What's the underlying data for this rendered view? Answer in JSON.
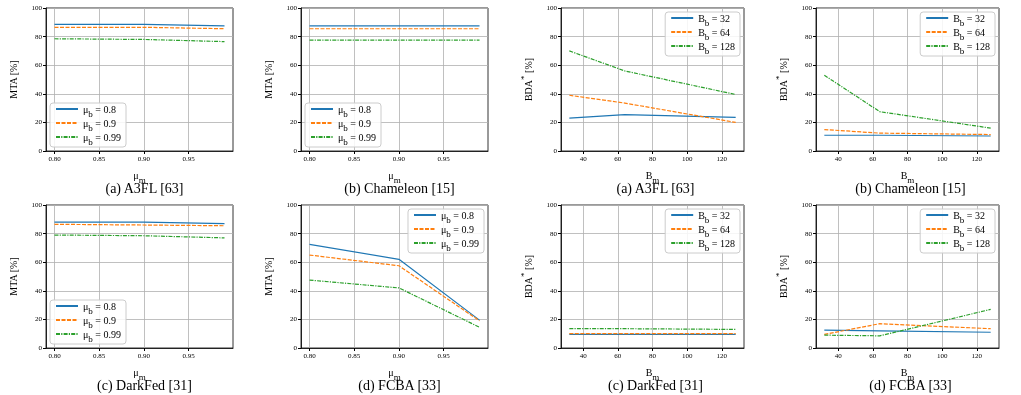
{
  "chart_data": [
    {
      "type": "line",
      "title": "(a) A3FL [63]",
      "xlabel": "μ$_{m}$",
      "ylabel": "MTA [%]",
      "x": [
        0.8,
        0.9,
        0.99
      ],
      "xlim": [
        0.7905,
        0.9995
      ],
      "xticks": [
        {
          "value": 0.8,
          "label": "0.80"
        },
        {
          "value": 0.85,
          "label": "0.85"
        },
        {
          "value": 0.9,
          "label": "0.90"
        },
        {
          "value": 0.95,
          "label": "0.95"
        }
      ],
      "ylim": [
        0,
        100
      ],
      "yticks": [
        0,
        20,
        40,
        60,
        80,
        100
      ],
      "grid": true,
      "legend": "bottom left",
      "series": [
        {
          "name": "μ$_{b}$ = 0.8",
          "color": "#1f77b4",
          "line_style": "solid",
          "values": [
            88.5,
            88.5,
            87.5
          ]
        },
        {
          "name": "μ$_{b}$ = 0.9",
          "color": "#ff7f0e",
          "line_style": "dashed",
          "values": [
            86.5,
            86.5,
            85.5
          ]
        },
        {
          "name": "μ$_{b}$ = 0.99",
          "color": "#2ca02c",
          "line_style": "dashdot",
          "values": [
            78.5,
            78,
            76.5
          ]
        }
      ]
    },
    {
      "type": "line",
      "title": "(b) Chameleon [15]",
      "xlabel": "μ$_{m}$",
      "ylabel": "MTA [%]",
      "x": [
        0.8,
        0.9,
        0.99
      ],
      "xlim": [
        0.7905,
        0.9995
      ],
      "xticks": [
        {
          "value": 0.8,
          "label": "0.80"
        },
        {
          "value": 0.85,
          "label": "0.85"
        },
        {
          "value": 0.9,
          "label": "0.90"
        },
        {
          "value": 0.95,
          "label": "0.95"
        }
      ],
      "ylim": [
        0,
        100
      ],
      "yticks": [
        0,
        20,
        40,
        60,
        80,
        100
      ],
      "grid": true,
      "legend": "bottom left",
      "series": [
        {
          "name": "μ$_{b}$ = 0.8",
          "color": "#1f77b4",
          "line_style": "solid",
          "values": [
            87.5,
            87.5,
            87.5
          ]
        },
        {
          "name": "μ$_{b}$ = 0.9",
          "color": "#ff7f0e",
          "line_style": "dashed",
          "values": [
            85.5,
            85.5,
            85.5
          ]
        },
        {
          "name": "μ$_{b}$ = 0.99",
          "color": "#2ca02c",
          "line_style": "dashdot",
          "values": [
            77.5,
            77.5,
            77.5
          ]
        }
      ]
    },
    {
      "type": "line",
      "title": "(a) A3FL [63]",
      "xlabel": "B$_{m}$",
      "ylabel": "BDA$^{*}$ [%]",
      "x": [
        32,
        64,
        128
      ],
      "xlim": [
        27.2,
        132.8
      ],
      "xticks": [
        40,
        60,
        80,
        100,
        120
      ],
      "ylim": [
        0,
        100
      ],
      "yticks": [
        0,
        20,
        40,
        60,
        80,
        100
      ],
      "grid": true,
      "legend": "top right",
      "series": [
        {
          "name": "B$_{b}$ = 32",
          "color": "#1f77b4",
          "line_style": "solid",
          "values": [
            23,
            25.5,
            23.5
          ]
        },
        {
          "name": "B$_{b}$ = 64",
          "color": "#ff7f0e",
          "line_style": "dashed",
          "values": [
            39,
            33.5,
            20
          ]
        },
        {
          "name": "B$_{b}$ = 128",
          "color": "#2ca02c",
          "line_style": "dashdot",
          "values": [
            70,
            56,
            39.5
          ]
        }
      ]
    },
    {
      "type": "line",
      "title": "(b) Chameleon [15]",
      "xlabel": "B$_{m}$",
      "ylabel": "BDA$^{*}$ [%]",
      "x": [
        32,
        64,
        128
      ],
      "xlim": [
        27.2,
        132.8
      ],
      "xticks": [
        40,
        60,
        80,
        100,
        120
      ],
      "ylim": [
        0,
        100
      ],
      "yticks": [
        0,
        20,
        40,
        60,
        80,
        100
      ],
      "grid": true,
      "legend": "top right",
      "series": [
        {
          "name": "B$_{b}$ = 32",
          "color": "#1f77b4",
          "line_style": "solid",
          "values": [
            11,
            11,
            10.5
          ]
        },
        {
          "name": "B$_{b}$ = 64",
          "color": "#ff7f0e",
          "line_style": "dashed",
          "values": [
            15,
            12.5,
            11.5
          ]
        },
        {
          "name": "B$_{b}$ = 128",
          "color": "#2ca02c",
          "line_style": "dashdot",
          "values": [
            53,
            27.5,
            16
          ]
        }
      ]
    },
    {
      "type": "line",
      "title": "(c) DarkFed [31]",
      "xlabel": "μ$_{m}$",
      "ylabel": "MTA [%]",
      "x": [
        0.8,
        0.9,
        0.99
      ],
      "xlim": [
        0.7905,
        0.9995
      ],
      "xticks": [
        {
          "value": 0.8,
          "label": "0.80"
        },
        {
          "value": 0.85,
          "label": "0.85"
        },
        {
          "value": 0.9,
          "label": "0.90"
        },
        {
          "value": 0.95,
          "label": "0.95"
        }
      ],
      "ylim": [
        0,
        100
      ],
      "yticks": [
        0,
        20,
        40,
        60,
        80,
        100
      ],
      "grid": true,
      "legend": "bottom left",
      "series": [
        {
          "name": "μ$_{b}$ = 0.8",
          "color": "#1f77b4",
          "line_style": "solid",
          "values": [
            88,
            88,
            87
          ]
        },
        {
          "name": "μ$_{b}$ = 0.9",
          "color": "#ff7f0e",
          "line_style": "dashed",
          "values": [
            86.5,
            86,
            85.5
          ]
        },
        {
          "name": "μ$_{b}$ = 0.99",
          "color": "#2ca02c",
          "line_style": "dashdot",
          "values": [
            79,
            78.5,
            77
          ]
        }
      ]
    },
    {
      "type": "line",
      "title": "(d) FCBA [33]",
      "xlabel": "μ$_{m}$",
      "ylabel": "MTA [%]",
      "x": [
        0.8,
        0.9,
        0.99
      ],
      "xlim": [
        0.7905,
        0.9995
      ],
      "xticks": [
        {
          "value": 0.8,
          "label": "0.80"
        },
        {
          "value": 0.85,
          "label": "0.85"
        },
        {
          "value": 0.9,
          "label": "0.90"
        },
        {
          "value": 0.95,
          "label": "0.95"
        }
      ],
      "ylim": [
        0,
        100
      ],
      "yticks": [
        0,
        20,
        40,
        60,
        80,
        100
      ],
      "grid": true,
      "legend": "top right",
      "series": [
        {
          "name": "μ$_{b}$ = 0.8",
          "color": "#1f77b4",
          "line_style": "solid",
          "values": [
            72.5,
            62,
            19.5
          ]
        },
        {
          "name": "μ$_{b}$ = 0.9",
          "color": "#ff7f0e",
          "line_style": "dashed",
          "values": [
            65,
            57.5,
            19
          ]
        },
        {
          "name": "μ$_{b}$ = 0.99",
          "color": "#2ca02c",
          "line_style": "dashdot",
          "values": [
            47.5,
            42,
            14.5
          ]
        }
      ]
    },
    {
      "type": "line",
      "title": "(c) DarkFed [31]",
      "xlabel": "B$_{m}$",
      "ylabel": "BDA$^{*}$ [%]",
      "x": [
        32,
        64,
        128
      ],
      "xlim": [
        27.2,
        132.8
      ],
      "xticks": [
        40,
        60,
        80,
        100,
        120
      ],
      "ylim": [
        0,
        100
      ],
      "yticks": [
        0,
        20,
        40,
        60,
        80,
        100
      ],
      "grid": true,
      "legend": "top right",
      "series": [
        {
          "name": "B$_{b}$ = 32",
          "color": "#1f77b4",
          "line_style": "solid",
          "values": [
            9.5,
            9.5,
            9.5
          ]
        },
        {
          "name": "B$_{b}$ = 64",
          "color": "#ff7f0e",
          "line_style": "dashed",
          "values": [
            10,
            10,
            10
          ]
        },
        {
          "name": "B$_{b}$ = 128",
          "color": "#2ca02c",
          "line_style": "dashdot",
          "values": [
            13.5,
            13.5,
            13
          ]
        }
      ]
    },
    {
      "type": "line",
      "title": "(d) FCBA [33]",
      "xlabel": "B$_{m}$",
      "ylabel": "BDA$^{*}$ [%]",
      "x": [
        32,
        64,
        128
      ],
      "xlim": [
        27.2,
        132.8
      ],
      "xticks": [
        40,
        60,
        80,
        100,
        120
      ],
      "ylim": [
        0,
        100
      ],
      "yticks": [
        0,
        20,
        40,
        60,
        80,
        100
      ],
      "grid": true,
      "legend": "top right",
      "series": [
        {
          "name": "B$_{b}$ = 32",
          "color": "#1f77b4",
          "line_style": "solid",
          "values": [
            12.5,
            12,
            11
          ]
        },
        {
          "name": "B$_{b}$ = 64",
          "color": "#ff7f0e",
          "line_style": "dashed",
          "values": [
            9.5,
            17,
            13.5
          ]
        },
        {
          "name": "B$_{b}$ = 128",
          "color": "#2ca02c",
          "line_style": "dashdot",
          "values": [
            9,
            8.5,
            27
          ]
        }
      ]
    }
  ]
}
